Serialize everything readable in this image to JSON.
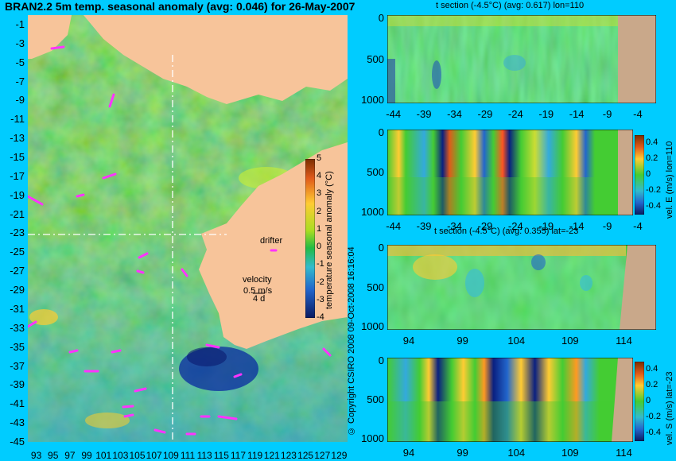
{
  "colors": {
    "background": "#00ccff",
    "land": "#f7c49a",
    "land_section": "#c9a88a",
    "ocean_base": "#44cc33",
    "drifter": "#ff33ff",
    "guide_line": "#ffffff"
  },
  "map": {
    "title": "BRAN2.2 5m temp. seasonal anomaly (avg: 0.046) for 26-May-2007",
    "drifter_label": "drifter",
    "velocity_label": "velocity",
    "velocity_value": "0.5 m/s",
    "velocity_extra": "4 d",
    "copyright": "© Copyright CSIRO 2008  09-Oct-2008 16:16:04"
  },
  "colorbar_main": {
    "label": "temperature seasonal anomaly (°C)"
  },
  "colorbar_section1": {
    "label": "vel. E (m/s) lon=110"
  },
  "colorbar_section2": {
    "label": "vel. S (m/s) lat=-23"
  },
  "panels": {
    "p1_title": "t section (-4.5°C) (avg: 0.617) lon=110",
    "p3_title": "t section (-4.5°C) (avg: 0.355) lat=-23"
  },
  "chart_data": [
    {
      "type": "heatmap",
      "title": "BRAN2.2 5m temp. seasonal anomaly (avg: 0.046) for 26-May-2007",
      "x_ticks": [
        "93",
        "95",
        "97",
        "99",
        "101",
        "103",
        "105",
        "107",
        "109",
        "111",
        "113",
        "115",
        "117",
        "119",
        "121",
        "123",
        "125",
        "127",
        "129"
      ],
      "y_ticks": [
        "-1",
        "-3",
        "-5",
        "-7",
        "-9",
        "-11",
        "-13",
        "-15",
        "-17",
        "-19",
        "-21",
        "-23",
        "-25",
        "-27",
        "-29",
        "-31",
        "-33",
        "-35",
        "-37",
        "-39",
        "-41",
        "-43",
        "-45"
      ],
      "xlim": [
        92,
        130
      ],
      "ylim": [
        -45,
        0
      ],
      "colorbar_ticks": [
        "5",
        "4",
        "3",
        "2",
        "1",
        "0",
        "-1",
        "-2",
        "-3",
        "-4"
      ],
      "colorbar_range": [
        -4,
        5
      ]
    },
    {
      "type": "heatmap",
      "title": "t section (-4.5°C) (avg: 0.617) lon=110",
      "x_ticks": [
        "-44",
        "-39",
        "-34",
        "-29",
        "-24",
        "-19",
        "-14",
        "-9",
        "-4"
      ],
      "y_ticks": [
        "0",
        "500",
        "1000"
      ],
      "xlim": [
        -45,
        -1
      ],
      "ylim": [
        1000,
        0
      ]
    },
    {
      "type": "heatmap",
      "title": "",
      "x_ticks": [
        "-44",
        "-39",
        "-34",
        "-29",
        "-24",
        "-19",
        "-14",
        "-9",
        "-4"
      ],
      "y_ticks": [
        "0",
        "500",
        "1000"
      ],
      "xlim": [
        -45,
        -1
      ],
      "ylim": [
        1000,
        0
      ],
      "colorbar_ticks": [
        "0.4",
        "0.2",
        "0",
        "-0.2",
        "-0.4"
      ],
      "colorbar_range": [
        -0.5,
        0.5
      ],
      "colorbar_label": "vel. E (m/s) lon=110"
    },
    {
      "type": "heatmap",
      "title": "t section (-4.5°C) (avg: 0.355) lat=-23",
      "x_ticks": [
        "94",
        "99",
        "104",
        "109",
        "114"
      ],
      "y_ticks": [
        "0",
        "500",
        "1000"
      ],
      "xlim": [
        92,
        117
      ],
      "ylim": [
        1000,
        0
      ]
    },
    {
      "type": "heatmap",
      "title": "",
      "x_ticks": [
        "94",
        "99",
        "104",
        "109",
        "114"
      ],
      "y_ticks": [
        "0",
        "500",
        "1000"
      ],
      "xlim": [
        92,
        117
      ],
      "ylim": [
        1000,
        0
      ],
      "colorbar_ticks": [
        "0.4",
        "0.2",
        "0",
        "-0.2",
        "-0.4"
      ],
      "colorbar_range": [
        -0.5,
        0.5
      ],
      "colorbar_label": "vel. S (m/s) lat=-23"
    }
  ]
}
